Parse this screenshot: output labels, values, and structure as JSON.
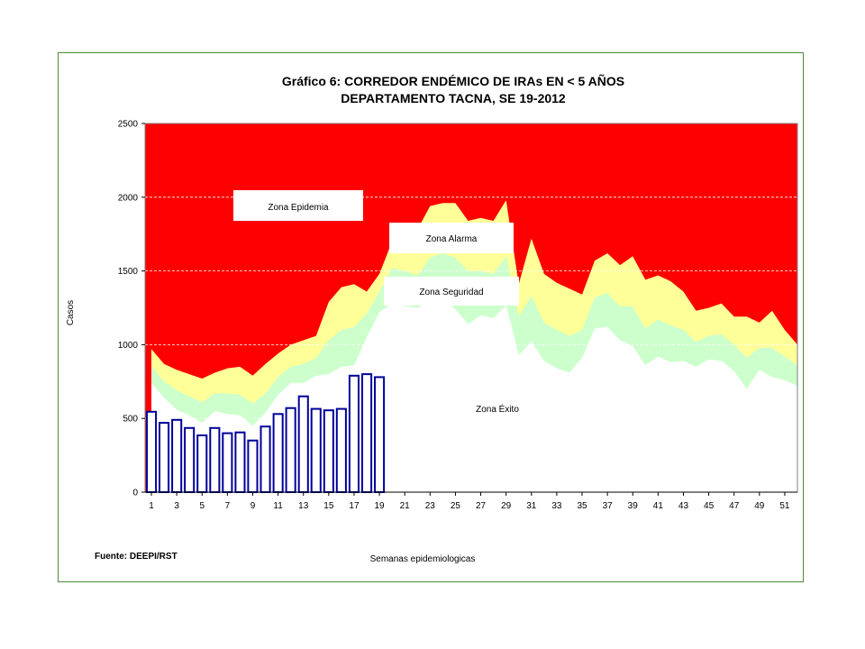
{
  "chart_data": {
    "type": "area+bar",
    "title_line1": "Gráfico 6: CORREDOR ENDÉMICO DE IRAs EN < 5 AÑOS",
    "title_line2": "DEPARTAMENTO TACNA,  SE 19-2012",
    "xlabel": "Semanas epidemiologicas",
    "ylabel": "Casos",
    "ylim": [
      0,
      2500
    ],
    "yticks": [
      0,
      500,
      1000,
      1500,
      2000,
      2500
    ],
    "xlim": [
      1,
      52
    ],
    "xticks": [
      1,
      3,
      5,
      7,
      9,
      11,
      13,
      15,
      17,
      19,
      21,
      23,
      25,
      27,
      29,
      31,
      33,
      35,
      37,
      39,
      41,
      43,
      45,
      47,
      49,
      51
    ],
    "grid": true,
    "source": "Fuente: DEEPI/RST",
    "zones": {
      "epidemia": "Zona Epidemia",
      "alarma": "Zona Alarma",
      "seguridad": "Zona Seguridad",
      "exito": "Zona Éxito"
    },
    "colors": {
      "epidemia": "#ff0000",
      "alarma": "#ffff99",
      "seguridad": "#ccffcc",
      "exito": "#ffffff",
      "bars": "#000099",
      "border": "#4f8a3c"
    },
    "weeks": [
      1,
      2,
      3,
      4,
      5,
      6,
      7,
      8,
      9,
      10,
      11,
      12,
      13,
      14,
      15,
      16,
      17,
      18,
      19,
      20,
      21,
      22,
      23,
      24,
      25,
      26,
      27,
      28,
      29,
      30,
      31,
      32,
      33,
      34,
      35,
      36,
      37,
      38,
      39,
      40,
      41,
      42,
      43,
      44,
      45,
      46,
      47,
      48,
      49,
      50,
      51,
      52
    ],
    "exito_upper": [
      740,
      640,
      560,
      520,
      470,
      550,
      530,
      520,
      450,
      540,
      660,
      740,
      740,
      790,
      800,
      850,
      860,
      1050,
      1220,
      1280,
      1260,
      1250,
      1290,
      1320,
      1240,
      1140,
      1200,
      1180,
      1270,
      930,
      1020,
      890,
      840,
      810,
      910,
      1110,
      1120,
      1030,
      990,
      860,
      920,
      880,
      890,
      850,
      900,
      890,
      820,
      700,
      830,
      780,
      760,
      720
    ],
    "seguridad_upper": [
      850,
      750,
      690,
      650,
      610,
      670,
      670,
      660,
      600,
      670,
      780,
      850,
      870,
      910,
      1030,
      1100,
      1120,
      1210,
      1360,
      1520,
      1500,
      1470,
      1590,
      1620,
      1590,
      1500,
      1500,
      1480,
      1600,
      1190,
      1330,
      1150,
      1100,
      1060,
      1100,
      1320,
      1350,
      1260,
      1260,
      1110,
      1170,
      1130,
      1100,
      1020,
      1060,
      1070,
      1000,
      910,
      980,
      980,
      920,
      860
    ],
    "alarma_upper": [
      970,
      870,
      830,
      800,
      770,
      810,
      840,
      850,
      790,
      870,
      940,
      1000,
      1030,
      1060,
      1290,
      1390,
      1410,
      1360,
      1480,
      1700,
      1760,
      1780,
      1940,
      1960,
      1960,
      1840,
      1860,
      1840,
      1980,
      1410,
      1720,
      1480,
      1420,
      1380,
      1340,
      1570,
      1620,
      1540,
      1600,
      1440,
      1470,
      1430,
      1360,
      1230,
      1250,
      1280,
      1190,
      1190,
      1150,
      1230,
      1100,
      1000
    ],
    "cases_weeks": [
      1,
      2,
      3,
      4,
      5,
      6,
      7,
      8,
      9,
      10,
      11,
      12,
      13,
      14,
      15,
      16,
      17,
      18,
      19
    ],
    "cases": [
      545,
      470,
      490,
      435,
      385,
      435,
      400,
      405,
      350,
      445,
      530,
      570,
      650,
      565,
      555,
      565,
      790,
      800,
      780
    ]
  }
}
